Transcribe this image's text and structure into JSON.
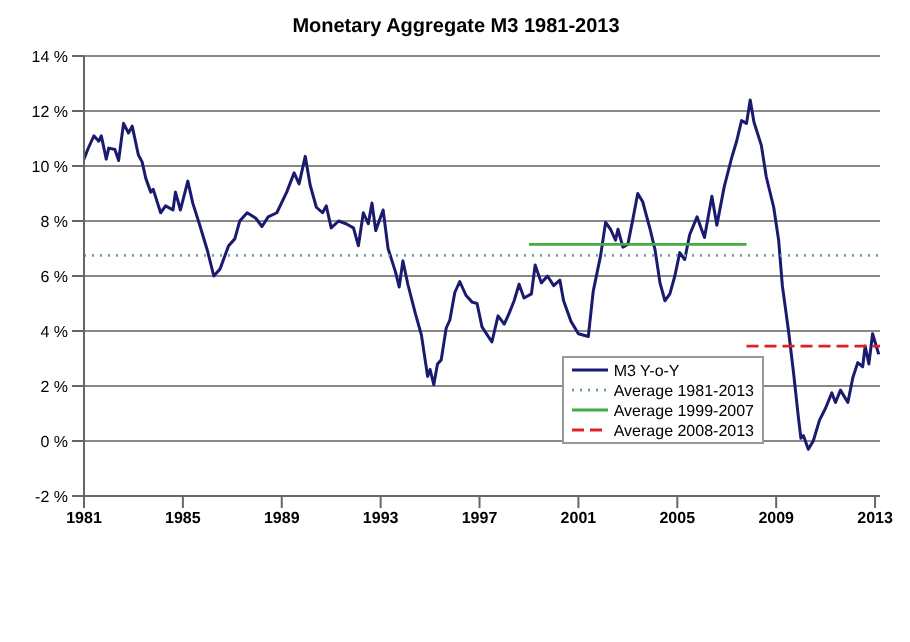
{
  "chart_data": {
    "type": "line",
    "title": "Monetary Aggregate M3 1981-2013",
    "xlim": [
      1981,
      2013.2
    ],
    "xticks": [
      1981,
      1985,
      1989,
      1993,
      1997,
      2001,
      2005,
      2009,
      2013
    ],
    "ylim": [
      -2,
      14
    ],
    "yticks": [
      {
        "value": -2,
        "label": "-2 %"
      },
      {
        "value": 0,
        "label": "0 %"
      },
      {
        "value": 2,
        "label": "2 %"
      },
      {
        "value": 4,
        "label": "4 %"
      },
      {
        "value": 6,
        "label": "6 %"
      },
      {
        "value": 8,
        "label": "8 %"
      },
      {
        "value": 10,
        "label": "10 %"
      },
      {
        "value": 12,
        "label": "12 %"
      },
      {
        "value": 14,
        "label": "14 %"
      }
    ],
    "grid": "y",
    "legend": "bottom right",
    "marker": "none",
    "series": [
      {
        "name": "M3 Y-o-Y",
        "color": "#1a1a6e",
        "line_style": "solid",
        "x": [
          1981.0,
          1981.15,
          1981.4,
          1981.6,
          1981.7,
          1981.9,
          1982.0,
          1982.25,
          1982.4,
          1982.6,
          1982.8,
          1982.95,
          1983.2,
          1983.35,
          1983.5,
          1983.7,
          1983.8,
          1984.1,
          1984.3,
          1984.6,
          1984.7,
          1984.9,
          1985.2,
          1985.4,
          1985.7,
          1986.0,
          1986.25,
          1986.5,
          1986.85,
          1987.1,
          1987.3,
          1987.6,
          1987.95,
          1988.2,
          1988.45,
          1988.8,
          1989.2,
          1989.5,
          1989.7,
          1989.95,
          1990.15,
          1990.4,
          1990.65,
          1990.8,
          1991.0,
          1991.3,
          1991.6,
          1991.9,
          1992.1,
          1992.3,
          1992.5,
          1992.65,
          1992.8,
          1993.1,
          1993.3,
          1993.6,
          1993.75,
          1993.9,
          1994.1,
          1994.4,
          1994.65,
          1994.9,
          1995.0,
          1995.15,
          1995.3,
          1995.45,
          1995.65,
          1995.8,
          1996.0,
          1996.2,
          1996.45,
          1996.7,
          1996.9,
          1997.1,
          1997.5,
          1997.75,
          1998.0,
          1998.2,
          1998.4,
          1998.6,
          1998.8,
          1999.1,
          1999.25,
          1999.5,
          1999.75,
          2000.0,
          2000.25,
          2000.4,
          2000.7,
          2001.0,
          2001.4,
          2001.6,
          2001.9,
          2002.1,
          2002.3,
          2002.5,
          2002.6,
          2002.8,
          2003.0,
          2003.2,
          2003.4,
          2003.6,
          2003.9,
          2004.1,
          2004.3,
          2004.5,
          2004.7,
          2004.9,
          2005.1,
          2005.3,
          2005.5,
          2005.8,
          2006.1,
          2006.4,
          2006.6,
          2006.9,
          2007.2,
          2007.4,
          2007.6,
          2007.8,
          2007.95,
          2008.1,
          2008.4,
          2008.6,
          2008.9,
          2009.1,
          2009.25,
          2009.5,
          2009.7,
          2009.9,
          2010.0,
          2010.1,
          2010.3,
          2010.5,
          2010.75,
          2011.0,
          2011.25,
          2011.4,
          2011.6,
          2011.9,
          2012.1,
          2012.3,
          2012.5,
          2012.6,
          2012.75,
          2012.9,
          2013.15
        ],
        "values": [
          10.25,
          10.6,
          11.1,
          10.9,
          11.1,
          10.25,
          10.65,
          10.6,
          10.2,
          11.55,
          11.2,
          11.45,
          10.4,
          10.15,
          9.55,
          9.05,
          9.15,
          8.3,
          8.55,
          8.4,
          9.05,
          8.4,
          9.45,
          8.65,
          7.8,
          6.9,
          6.0,
          6.25,
          7.1,
          7.35,
          8.0,
          8.3,
          8.1,
          7.8,
          8.15,
          8.3,
          9.05,
          9.75,
          9.35,
          10.35,
          9.3,
          8.5,
          8.3,
          8.55,
          7.75,
          8.0,
          7.9,
          7.75,
          7.1,
          8.3,
          7.9,
          8.65,
          7.65,
          8.4,
          7.0,
          6.15,
          5.6,
          6.55,
          5.7,
          4.65,
          3.85,
          2.35,
          2.6,
          2.05,
          2.8,
          2.95,
          4.1,
          4.4,
          5.4,
          5.8,
          5.3,
          5.05,
          5.0,
          4.15,
          3.6,
          4.55,
          4.25,
          4.65,
          5.1,
          5.7,
          5.2,
          5.35,
          6.4,
          5.75,
          6.0,
          5.65,
          5.85,
          5.1,
          4.35,
          3.9,
          3.8,
          5.45,
          6.75,
          7.95,
          7.7,
          7.3,
          7.7,
          7.05,
          7.15,
          8.05,
          9.0,
          8.7,
          7.7,
          6.95,
          5.75,
          5.1,
          5.35,
          6.0,
          6.85,
          6.6,
          7.5,
          8.15,
          7.4,
          8.9,
          7.85,
          9.25,
          10.3,
          10.9,
          11.65,
          11.55,
          12.4,
          11.6,
          10.75,
          9.6,
          8.5,
          7.3,
          5.65,
          4.0,
          2.5,
          0.85,
          0.1,
          0.2,
          -0.3,
          0.0,
          0.75,
          1.2,
          1.75,
          1.4,
          1.85,
          1.4,
          2.3,
          2.85,
          2.7,
          3.45,
          2.8,
          3.9,
          3.15
        ]
      },
      {
        "name": "Average 1981-2013",
        "color": "#6aa6a6",
        "line_style": "dotted",
        "x": [
          1981,
          2013.2
        ],
        "values": [
          6.75,
          6.75
        ]
      },
      {
        "name": "Average 1999-2007",
        "color": "#44aa44",
        "line_style": "solid",
        "x": [
          1999,
          2007.8
        ],
        "values": [
          7.15,
          7.15
        ]
      },
      {
        "name": "Average 2008-2013",
        "color": "#dd2222",
        "line_style": "dashed",
        "x": [
          2007.8,
          2013.2
        ],
        "values": [
          3.45,
          3.45
        ]
      }
    ]
  }
}
